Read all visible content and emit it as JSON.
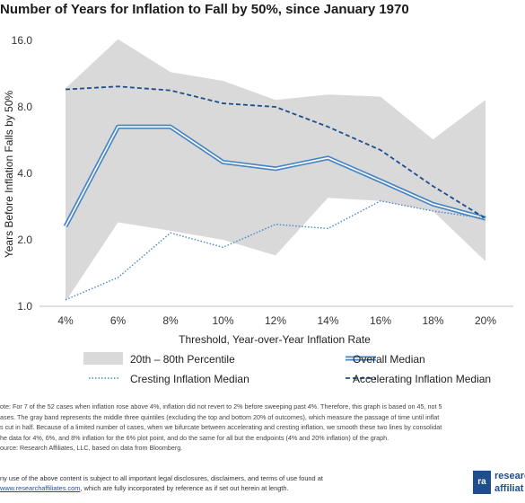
{
  "chart_data": {
    "type": "area",
    "title": "Number of Years for Inflation to Fall by 50%, since January 1970",
    "xlabel": "Threshold, Year-over-Year Inflation Rate",
    "ylabel": "Years Before Inflation Falls by 50%",
    "y_scale": "log",
    "ylim": [
      1.0,
      16.0
    ],
    "y_ticks": [
      "1.0",
      "2.0",
      "4.0",
      "8.0",
      "16.0"
    ],
    "y_tick_values": [
      1,
      2,
      4,
      8,
      16
    ],
    "categories": [
      "4%",
      "6%",
      "8%",
      "10%",
      "12%",
      "14%",
      "16%",
      "18%",
      "20%"
    ],
    "band": {
      "name": "20th – 80th Percentile",
      "color": "#d9d9d9",
      "upper": [
        9.7,
        16.2,
        11.5,
        10.5,
        8.6,
        9.1,
        8.9,
        5.7,
        8.6
      ],
      "lower": [
        1.05,
        2.4,
        2.2,
        2.0,
        1.7,
        3.1,
        3.0,
        2.7,
        1.6
      ]
    },
    "series": [
      {
        "name": "Overall Median",
        "style": "double",
        "color": "#4a86c5",
        "values": [
          2.3,
          6.5,
          6.5,
          4.5,
          4.2,
          4.7,
          3.7,
          2.9,
          2.5
        ]
      },
      {
        "name": "Cresting Inflation Median",
        "style": "dotted",
        "color": "#4a86c5",
        "values": [
          1.07,
          1.35,
          2.15,
          1.85,
          2.35,
          2.25,
          3.0,
          2.7,
          2.5
        ]
      },
      {
        "name": "Accelerating Inflation Median",
        "style": "dashed",
        "color": "#1f4e8c",
        "values": [
          9.6,
          9.9,
          9.5,
          8.3,
          8.0,
          6.5,
          5.1,
          3.5,
          2.5
        ]
      }
    ],
    "grid": false,
    "legend_position": "bottom"
  },
  "notes": [
    "ote: For 7 of the 52 cases when inflation rose above 4%, inflation did not revert to 2% before sweeping past 4%. Therefore, this graph is based on 45, not 5",
    "ases. The gray band represents the middle three quintiles (excluding the top and bottom 20% of outcomes), which measure the passage of time until inflat",
    "s cut in half. Because of a limited number of cases, when we bifurcate between accelerating and cresting inflation, we smooth these two lines by consolidat",
    "he data for 4%, 6%, and 8% inflation for the 6% plot point, and do the same for all but the endpoints (4% and 20% inflation) of the graph.",
    "ource: Research Affiliates, LLC, based on data from Bloomberg."
  ],
  "disclaimer": {
    "line1": "ny use of the above content is subject to all important legal disclosures, disclaimers, and terms of use found at",
    "link": "www.researchaffiliates.com",
    "line2_rest": ", which are fully incorporated by reference as if set out herein at length."
  },
  "logo": {
    "line1": "researc",
    "line2": "affiliat"
  }
}
